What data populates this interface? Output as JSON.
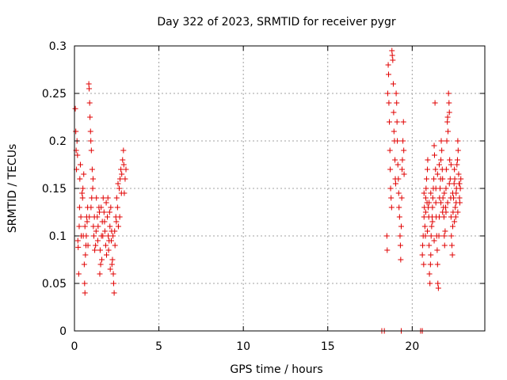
{
  "chart_data": {
    "type": "scatter",
    "title": "Day 322 of 2023, SRMTID for receiver pygr",
    "xlabel": "GPS time / hours",
    "ylabel": "SRMTID / TECUs",
    "xlim": [
      0,
      24.3
    ],
    "ylim": [
      0,
      0.3
    ],
    "xticks": [
      0,
      5,
      10,
      15,
      20
    ],
    "xtick_labels": [
      "0",
      "5",
      "10",
      "15",
      "20"
    ],
    "yticks": [
      0,
      0.05,
      0.1,
      0.15,
      0.2,
      0.25,
      0.3
    ],
    "ytick_labels": [
      "0",
      "0.05",
      "0.1",
      "0.15",
      "0.2",
      "0.25",
      "0.3"
    ],
    "grid": true,
    "marker": "+",
    "series_color": "#e00000",
    "series": [
      {
        "name": "SRMTID",
        "points": [
          [
            0.05,
            0.234
          ],
          [
            0.08,
            0.21
          ],
          [
            0.1,
            0.19
          ],
          [
            0.12,
            0.17
          ],
          [
            0.15,
            0.2
          ],
          [
            0.18,
            0.185
          ],
          [
            0.2,
            0.095
          ],
          [
            0.22,
            0.088
          ],
          [
            0.25,
            0.06
          ],
          [
            0.28,
            0.11
          ],
          [
            0.3,
            0.13
          ],
          [
            0.32,
            0.16
          ],
          [
            0.35,
            0.175
          ],
          [
            0.38,
            0.12
          ],
          [
            0.4,
            0.1
          ],
          [
            0.45,
            0.145
          ],
          [
            0.48,
            0.14
          ],
          [
            0.5,
            0.15
          ],
          [
            0.55,
            0.165
          ],
          [
            0.58,
            0.07
          ],
          [
            0.6,
            0.05
          ],
          [
            0.62,
            0.04
          ],
          [
            0.65,
            0.08
          ],
          [
            0.7,
            0.1
          ],
          [
            0.72,
            0.12
          ],
          [
            0.75,
            0.115
          ],
          [
            0.78,
            0.13
          ],
          [
            0.8,
            0.09
          ],
          [
            0.85,
            0.26
          ],
          [
            0.87,
            0.255
          ],
          [
            0.9,
            0.24
          ],
          [
            0.92,
            0.225
          ],
          [
            0.95,
            0.21
          ],
          [
            0.97,
            0.2
          ],
          [
            1.0,
            0.19
          ],
          [
            1.05,
            0.17
          ],
          [
            1.1,
            0.16
          ],
          [
            1.12,
            0.11
          ],
          [
            1.15,
            0.1
          ],
          [
            1.2,
            0.085
          ],
          [
            1.25,
            0.09
          ],
          [
            1.3,
            0.14
          ],
          [
            1.35,
            0.12
          ],
          [
            1.4,
            0.11
          ],
          [
            1.45,
            0.13
          ],
          [
            1.5,
            0.06
          ],
          [
            1.55,
            0.07
          ],
          [
            1.6,
            0.1
          ],
          [
            1.65,
            0.115
          ],
          [
            1.7,
            0.14
          ],
          [
            1.75,
            0.125
          ],
          [
            1.8,
            0.105
          ],
          [
            1.85,
            0.09
          ],
          [
            1.9,
            0.08
          ],
          [
            1.95,
            0.12
          ],
          [
            2.0,
            0.1
          ],
          [
            2.05,
            0.095
          ],
          [
            2.1,
            0.11
          ],
          [
            2.15,
            0.13
          ],
          [
            2.2,
            0.105
          ],
          [
            2.25,
            0.075
          ],
          [
            2.3,
            0.06
          ],
          [
            2.32,
            0.05
          ],
          [
            2.35,
            0.04
          ],
          [
            2.4,
            0.09
          ],
          [
            2.45,
            0.12
          ],
          [
            2.5,
            0.14
          ],
          [
            2.55,
            0.13
          ],
          [
            2.6,
            0.11
          ],
          [
            2.65,
            0.15
          ],
          [
            2.7,
            0.16
          ],
          [
            2.75,
            0.17
          ],
          [
            2.8,
            0.165
          ],
          [
            2.85,
            0.18
          ],
          [
            2.9,
            0.19
          ],
          [
            2.92,
            0.175
          ],
          [
            2.95,
            0.145
          ],
          [
            3.0,
            0.16
          ],
          [
            3.05,
            0.17
          ],
          [
            1.02,
            0.14
          ],
          [
            1.08,
            0.15
          ],
          [
            1.18,
            0.12
          ],
          [
            1.28,
            0.105
          ],
          [
            1.38,
            0.095
          ],
          [
            1.48,
            0.125
          ],
          [
            1.58,
            0.13
          ],
          [
            1.68,
            0.1
          ],
          [
            1.78,
            0.115
          ],
          [
            1.88,
            0.135
          ],
          [
            1.98,
            0.14
          ],
          [
            2.08,
            0.125
          ],
          [
            2.18,
            0.095
          ],
          [
            2.28,
            0.1
          ],
          [
            2.38,
            0.105
          ],
          [
            2.48,
            0.115
          ],
          [
            2.58,
            0.155
          ],
          [
            2.68,
            0.12
          ],
          [
            2.78,
            0.145
          ],
          [
            0.52,
            0.1
          ],
          [
            0.62,
            0.11
          ],
          [
            0.68,
            0.09
          ],
          [
            0.88,
            0.12
          ],
          [
            0.98,
            0.13
          ],
          [
            1.52,
            0.085
          ],
          [
            1.62,
            0.075
          ],
          [
            2.02,
            0.085
          ],
          [
            2.12,
            0.065
          ],
          [
            2.22,
            0.07
          ],
          [
            18.2,
            0.0
          ],
          [
            18.35,
            0.0
          ],
          [
            19.35,
            0.0
          ],
          [
            20.5,
            0.0
          ],
          [
            20.6,
            0.0
          ],
          [
            18.5,
            0.1
          ],
          [
            18.52,
            0.085
          ],
          [
            18.55,
            0.25
          ],
          [
            18.58,
            0.28
          ],
          [
            18.6,
            0.27
          ],
          [
            18.62,
            0.24
          ],
          [
            18.65,
            0.22
          ],
          [
            18.68,
            0.19
          ],
          [
            18.7,
            0.17
          ],
          [
            18.72,
            0.15
          ],
          [
            18.75,
            0.14
          ],
          [
            18.78,
            0.13
          ],
          [
            18.8,
            0.295
          ],
          [
            18.82,
            0.29
          ],
          [
            18.85,
            0.285
          ],
          [
            18.88,
            0.26
          ],
          [
            18.9,
            0.23
          ],
          [
            18.92,
            0.21
          ],
          [
            18.95,
            0.2
          ],
          [
            18.98,
            0.18
          ],
          [
            19.0,
            0.16
          ],
          [
            19.02,
            0.155
          ],
          [
            19.05,
            0.25
          ],
          [
            19.08,
            0.24
          ],
          [
            19.1,
            0.22
          ],
          [
            19.12,
            0.2
          ],
          [
            19.15,
            0.175
          ],
          [
            19.18,
            0.16
          ],
          [
            19.2,
            0.145
          ],
          [
            19.22,
            0.13
          ],
          [
            19.25,
            0.12
          ],
          [
            19.28,
            0.1
          ],
          [
            19.3,
            0.09
          ],
          [
            19.32,
            0.075
          ],
          [
            19.35,
            0.11
          ],
          [
            19.38,
            0.14
          ],
          [
            19.4,
            0.17
          ],
          [
            19.42,
            0.18
          ],
          [
            19.45,
            0.2
          ],
          [
            19.48,
            0.22
          ],
          [
            19.5,
            0.19
          ],
          [
            19.52,
            0.165
          ],
          [
            20.6,
            0.08
          ],
          [
            20.62,
            0.09
          ],
          [
            20.65,
            0.1
          ],
          [
            20.68,
            0.07
          ],
          [
            20.7,
            0.12
          ],
          [
            20.72,
            0.13
          ],
          [
            20.75,
            0.11
          ],
          [
            20.78,
            0.1
          ],
          [
            20.8,
            0.14
          ],
          [
            20.82,
            0.15
          ],
          [
            20.85,
            0.16
          ],
          [
            20.88,
            0.135
          ],
          [
            20.9,
            0.17
          ],
          [
            20.92,
            0.18
          ],
          [
            20.95,
            0.13
          ],
          [
            20.98,
            0.12
          ],
          [
            21.0,
            0.09
          ],
          [
            21.02,
            0.06
          ],
          [
            21.05,
            0.05
          ],
          [
            21.08,
            0.07
          ],
          [
            21.1,
            0.08
          ],
          [
            21.12,
            0.1
          ],
          [
            21.15,
            0.11
          ],
          [
            21.18,
            0.12
          ],
          [
            21.2,
            0.13
          ],
          [
            21.22,
            0.14
          ],
          [
            21.25,
            0.15
          ],
          [
            21.28,
            0.16
          ],
          [
            21.3,
            0.195
          ],
          [
            21.32,
            0.185
          ],
          [
            21.35,
            0.24
          ],
          [
            21.38,
            0.17
          ],
          [
            21.4,
            0.15
          ],
          [
            21.42,
            0.12
          ],
          [
            21.45,
            0.1
          ],
          [
            21.48,
            0.085
          ],
          [
            21.5,
            0.07
          ],
          [
            21.52,
            0.05
          ],
          [
            21.55,
            0.045
          ],
          [
            21.58,
            0.1
          ],
          [
            21.6,
            0.12
          ],
          [
            21.62,
            0.14
          ],
          [
            21.65,
            0.15
          ],
          [
            21.68,
            0.16
          ],
          [
            21.7,
            0.18
          ],
          [
            21.72,
            0.2
          ],
          [
            21.75,
            0.19
          ],
          [
            21.78,
            0.17
          ],
          [
            21.8,
            0.16
          ],
          [
            21.82,
            0.14
          ],
          [
            21.85,
            0.13
          ],
          [
            21.88,
            0.12
          ],
          [
            21.9,
            0.1
          ],
          [
            21.92,
            0.09
          ],
          [
            21.95,
            0.105
          ],
          [
            21.98,
            0.13
          ],
          [
            22.0,
            0.15
          ],
          [
            22.02,
            0.17
          ],
          [
            22.05,
            0.2
          ],
          [
            22.08,
            0.22
          ],
          [
            22.1,
            0.225
          ],
          [
            22.12,
            0.21
          ],
          [
            22.15,
            0.25
          ],
          [
            22.18,
            0.24
          ],
          [
            22.2,
            0.23
          ],
          [
            22.22,
            0.18
          ],
          [
            22.25,
            0.16
          ],
          [
            22.28,
            0.14
          ],
          [
            22.3,
            0.12
          ],
          [
            22.32,
            0.1
          ],
          [
            22.35,
            0.09
          ],
          [
            22.38,
            0.08
          ],
          [
            22.4,
            0.11
          ],
          [
            22.42,
            0.125
          ],
          [
            22.45,
            0.14
          ],
          [
            22.48,
            0.155
          ],
          [
            22.5,
            0.17
          ],
          [
            22.52,
            0.16
          ],
          [
            22.55,
            0.13
          ],
          [
            22.58,
            0.12
          ],
          [
            22.6,
            0.145
          ],
          [
            22.62,
            0.15
          ],
          [
            22.65,
            0.175
          ],
          [
            22.68,
            0.18
          ],
          [
            22.7,
            0.2
          ],
          [
            22.72,
            0.19
          ],
          [
            22.75,
            0.165
          ],
          [
            22.78,
            0.155
          ],
          [
            22.8,
            0.14
          ],
          [
            22.82,
            0.135
          ],
          [
            22.85,
            0.15
          ],
          [
            22.88,
            0.16
          ],
          [
            20.7,
            0.145
          ],
          [
            20.8,
            0.125
          ],
          [
            20.9,
            0.105
          ],
          [
            21.0,
            0.135
          ],
          [
            21.1,
            0.145
          ],
          [
            21.2,
            0.115
          ],
          [
            21.3,
            0.095
          ],
          [
            21.4,
            0.135
          ],
          [
            21.5,
            0.165
          ],
          [
            21.6,
            0.175
          ],
          [
            21.7,
            0.135
          ],
          [
            21.8,
            0.125
          ],
          [
            21.9,
            0.145
          ],
          [
            22.0,
            0.125
          ],
          [
            22.1,
            0.135
          ],
          [
            22.2,
            0.155
          ],
          [
            22.3,
            0.175
          ],
          [
            22.4,
            0.145
          ],
          [
            22.5,
            0.115
          ],
          [
            22.6,
            0.135
          ],
          [
            22.7,
            0.125
          ],
          [
            22.8,
            0.155
          ]
        ]
      }
    ]
  }
}
